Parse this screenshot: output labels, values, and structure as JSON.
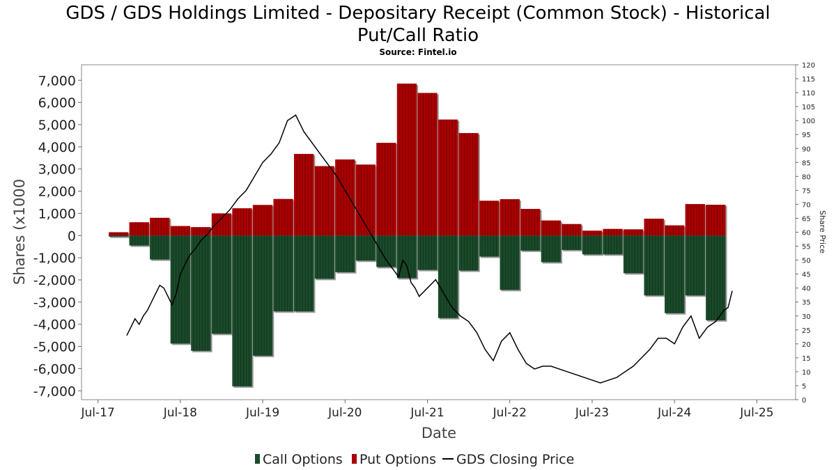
{
  "chart_data": {
    "type": "bar",
    "title_lines": [
      "GDS / GDS Holdings Limited - Depositary Receipt (Common Stock) - Historical",
      "Put/Call Ratio"
    ],
    "subtitle": "Source: Fintel.io",
    "xlabel": "Date",
    "ylabel": "Shares (x1000",
    "y2label": "Share Price",
    "ylim": [
      -7400,
      7700
    ],
    "y2lim": [
      0,
      120
    ],
    "yticks": [
      7000,
      6000,
      5000,
      4000,
      3000,
      2000,
      1000,
      0,
      -1000,
      -2000,
      -3000,
      -4000,
      -5000,
      -6000,
      -7000
    ],
    "ytick_labels": [
      "7,000",
      "6,000",
      "5,000",
      "4,000",
      "3,000",
      "2,000",
      "1,000",
      "0",
      "-1,000",
      "-2,000",
      "-3,000",
      "-4,000",
      "-5,000",
      "-6,000",
      "-7,000"
    ],
    "y2ticks": [
      120,
      115,
      110,
      105,
      100,
      95,
      90,
      85,
      80,
      75,
      70,
      65,
      60,
      55,
      50,
      45,
      40,
      35,
      30,
      25,
      20,
      15,
      10,
      5,
      0
    ],
    "xlim": [
      2017.3,
      2025.97
    ],
    "xticks": [
      2017.5,
      2018.5,
      2019.5,
      2020.5,
      2021.5,
      2022.5,
      2023.5,
      2024.5,
      2025.5
    ],
    "xtick_labels": [
      "Jul-17",
      "Jul-18",
      "Jul-19",
      "Jul-20",
      "Jul-21",
      "Jul-22",
      "Jul-23",
      "Jul-24",
      "Jul-25"
    ],
    "grid": false,
    "legend_position": "bottom",
    "bar_width_years": 0.24,
    "series": [
      {
        "name": "Put Options",
        "color": "#aa0000",
        "x": [
          2017.75,
          2018.0,
          2018.25,
          2018.5,
          2018.75,
          2019.0,
          2019.25,
          2019.5,
          2019.75,
          2020.0,
          2020.25,
          2020.5,
          2020.75,
          2021.0,
          2021.25,
          2021.5,
          2021.75,
          2022.0,
          2022.25,
          2022.5,
          2022.75,
          2023.0,
          2023.25,
          2023.5,
          2023.75,
          2024.0,
          2024.25,
          2024.5,
          2024.75,
          2025.0,
          2025.25
        ],
        "values": [
          150,
          600,
          800,
          430,
          380,
          1000,
          1230,
          1380,
          1650,
          3680,
          3130,
          3430,
          3200,
          4180,
          6850,
          6430,
          5230,
          4620,
          1570,
          1640,
          1200,
          680,
          520,
          220,
          300,
          280,
          760,
          460,
          1420,
          1390,
          0
        ]
      },
      {
        "name": "Call Options",
        "color": "#1a4a2a",
        "x": [
          2017.75,
          2018.0,
          2018.25,
          2018.5,
          2018.75,
          2019.0,
          2019.25,
          2019.5,
          2019.75,
          2020.0,
          2020.25,
          2020.5,
          2020.75,
          2021.0,
          2021.25,
          2021.5,
          2021.75,
          2022.0,
          2022.25,
          2022.5,
          2022.75,
          2023.0,
          2023.25,
          2023.5,
          2023.75,
          2024.0,
          2024.25,
          2024.5,
          2024.75,
          2025.0,
          2025.25
        ],
        "values": [
          -50,
          -450,
          -1080,
          -4870,
          -5200,
          -4430,
          -6800,
          -5420,
          -3420,
          -3420,
          -1950,
          -1650,
          -1130,
          -1420,
          -1920,
          -1550,
          -3720,
          -1580,
          -950,
          -2450,
          -680,
          -1200,
          -650,
          -850,
          -850,
          -1700,
          -2700,
          -3500,
          -2700,
          -3820,
          0
        ]
      },
      {
        "name": "GDS Closing Price",
        "color": "#000000",
        "x": [
          2017.85,
          2017.9,
          2017.95,
          2018.0,
          2018.05,
          2018.1,
          2018.15,
          2018.2,
          2018.25,
          2018.3,
          2018.35,
          2018.4,
          2018.45,
          2018.5,
          2018.55,
          2018.58,
          2018.62,
          2018.68,
          2018.75,
          2018.82,
          2018.9,
          2019.0,
          2019.1,
          2019.2,
          2019.3,
          2019.4,
          2019.5,
          2019.6,
          2019.7,
          2019.8,
          2019.9,
          2020.0,
          2020.1,
          2020.2,
          2020.3,
          2020.4,
          2020.5,
          2020.6,
          2020.7,
          2020.8,
          2020.9,
          2021.0,
          2021.05,
          2021.1,
          2021.15,
          2021.2,
          2021.25,
          2021.3,
          2021.35,
          2021.4,
          2021.5,
          2021.6,
          2021.7,
          2021.8,
          2021.9,
          2022.0,
          2022.1,
          2022.2,
          2022.3,
          2022.4,
          2022.5,
          2022.6,
          2022.7,
          2022.8,
          2022.9,
          2023.0,
          2023.1,
          2023.2,
          2023.3,
          2023.4,
          2023.5,
          2023.6,
          2023.7,
          2023.8,
          2023.9,
          2024.0,
          2024.1,
          2024.2,
          2024.3,
          2024.4,
          2024.5,
          2024.6,
          2024.7,
          2024.8,
          2024.9,
          2025.0,
          2025.1,
          2025.15,
          2025.2
        ],
        "values": [
          23,
          26,
          29,
          27,
          30,
          32,
          35,
          38,
          41,
          40,
          37,
          34,
          38,
          45,
          48,
          50,
          52,
          54,
          57,
          59,
          62,
          65,
          68,
          72,
          75,
          80,
          85,
          88,
          92,
          100,
          102,
          96,
          92,
          88,
          84,
          80,
          75,
          70,
          65,
          60,
          55,
          50,
          48,
          46,
          44,
          50,
          48,
          42,
          40,
          37,
          40,
          43,
          38,
          33,
          30,
          28,
          24,
          18,
          14,
          21,
          24,
          18,
          13,
          11,
          12,
          12,
          11,
          10,
          9,
          8,
          7,
          6,
          7,
          8,
          10,
          12,
          15,
          18,
          22,
          22,
          20,
          26,
          30,
          22,
          26,
          28,
          32,
          33,
          39
        ]
      }
    ]
  },
  "legend": {
    "items": [
      {
        "label": "Call Options",
        "color": "#1a4a2a",
        "kind": "bar"
      },
      {
        "label": "Put Options",
        "color": "#aa0000",
        "kind": "bar"
      },
      {
        "label": "GDS Closing Price",
        "color": "#000000",
        "kind": "line"
      }
    ]
  }
}
